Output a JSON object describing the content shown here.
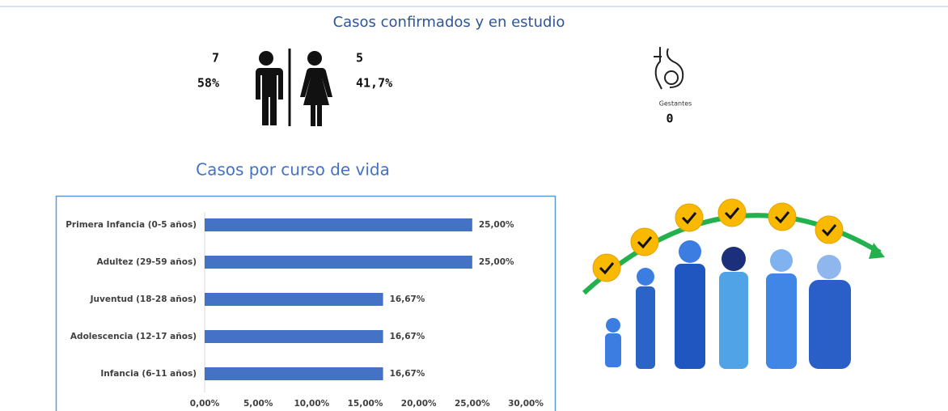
{
  "header": {
    "title": "Casos confirmados y en estudio"
  },
  "sex": {
    "men_count": "7",
    "men_percent": "58%",
    "women_count": "5",
    "women_percent": "41,7%"
  },
  "pregnant": {
    "label": "Gestantes",
    "count": "0"
  },
  "chart_data": {
    "type": "bar",
    "orientation": "horizontal",
    "title": "Casos por curso de vida",
    "categories": [
      "Primera Infancia (0-5 años)",
      "Adultez (29-59 años)",
      "Juventud (18-28 años)",
      "Adolescencia (12-17 años)",
      "Infancia (6-11 años)"
    ],
    "values": [
      25,
      25,
      16.67,
      16.67,
      16.67
    ],
    "value_labels": [
      "25,00%",
      "25,00%",
      "16,67%",
      "16,67%",
      "16,67%"
    ],
    "color": "#4472c4",
    "xlim": [
      0,
      30
    ],
    "xticks": [
      {
        "value": 0,
        "label": "0,00%"
      },
      {
        "value": 5,
        "label": "5,00%"
      },
      {
        "value": 10,
        "label": "10,00%"
      },
      {
        "value": 15,
        "label": "15,00%"
      },
      {
        "value": 20,
        "label": "20,00%"
      },
      {
        "value": 25,
        "label": "25,00%"
      },
      {
        "value": 30,
        "label": "30,00%"
      }
    ],
    "grid": false
  }
}
